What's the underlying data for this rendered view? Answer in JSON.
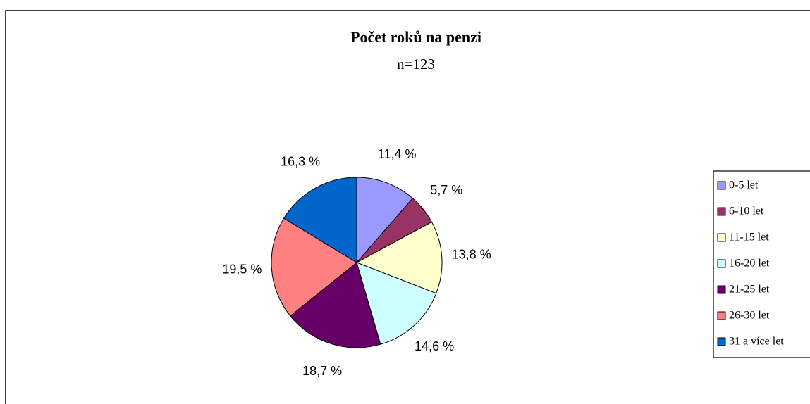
{
  "chart_data": {
    "type": "pie",
    "title": "Počet roků na penzi",
    "subtitle": "n=123",
    "categories": [
      "0-5 let",
      "6-10 let",
      "11-15 let",
      "16-20 let",
      "21-25 let",
      "26-30 let",
      "31 a více let"
    ],
    "values": [
      11.4,
      5.7,
      13.8,
      14.6,
      18.7,
      19.5,
      16.3
    ],
    "value_labels": [
      "11,4 %",
      "5,7 %",
      "13,8 %",
      "14,6 %",
      "18,7 %",
      "19,5 %",
      "16,3 %"
    ],
    "colors": [
      "#9999ff",
      "#993366",
      "#ffffcc",
      "#ccffff",
      "#660066",
      "#ff8080",
      "#0066cc"
    ],
    "legend": "right"
  }
}
